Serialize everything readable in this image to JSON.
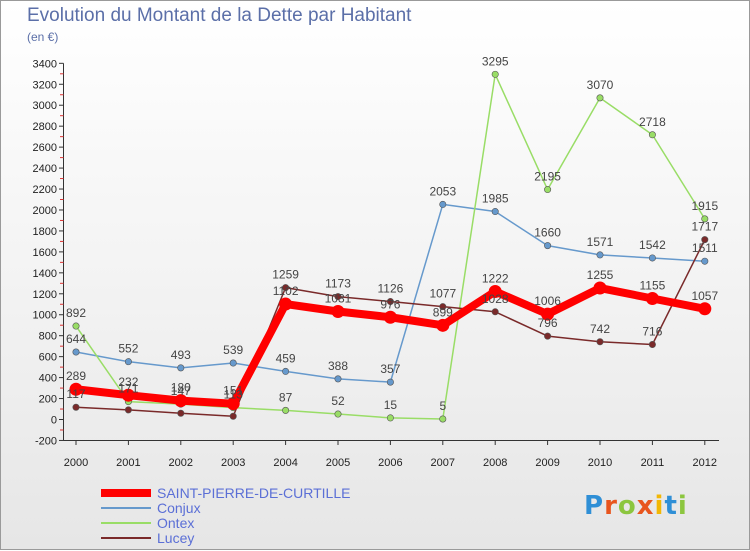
{
  "header": {
    "title": "Evolution du Montant de la Dette par Habitant",
    "unit": "(en €)"
  },
  "logo": {
    "text": "Proxiti",
    "letter_colors": [
      "#2f8fd6",
      "#e8551e",
      "#8cc63f",
      "#e8551e",
      "#f2b705",
      "#2f8fd6",
      "#8cc63f"
    ]
  },
  "chart_data": {
    "type": "line",
    "title": "Evolution du Montant de la Dette par Habitant",
    "subtitle": "(en €)",
    "xlabel": "",
    "ylabel": "",
    "x": [
      "2000",
      "2001",
      "2002",
      "2003",
      "2004",
      "2005",
      "2006",
      "2007",
      "2008",
      "2009",
      "2010",
      "2011",
      "2012"
    ],
    "ylim": [
      -200,
      3400
    ],
    "yticks": [
      -200,
      0,
      200,
      400,
      600,
      800,
      1000,
      1200,
      1400,
      1600,
      1800,
      2000,
      2200,
      2400,
      2600,
      2800,
      3000,
      3200,
      3400
    ],
    "grid": false,
    "legend_position": "bottom-left",
    "series": [
      {
        "name": "SAINT-PIERRE-DE-CURTILLE",
        "color": "#ff0000",
        "label_color": "#5b6fd6",
        "emphasis": true,
        "values": [
          289,
          232,
          180,
          151,
          1102,
          1031,
          976,
          899,
          1222,
          1006,
          1255,
          1155,
          1057
        ],
        "labels": [
          "289",
          "232",
          "180",
          "151",
          "1102",
          "1031",
          "976",
          "899",
          "1222",
          "1006",
          "1255",
          "1155",
          "1057"
        ]
      },
      {
        "name": "Conjux",
        "color": "#6699cc",
        "label_color": "#5b6fd6",
        "emphasis": false,
        "values": [
          644,
          552,
          493,
          539,
          459,
          388,
          357,
          2053,
          1985,
          1660,
          1571,
          1542,
          1511
        ],
        "labels": [
          "644",
          "552",
          "493",
          "539",
          "459",
          "388",
          "357",
          "2053",
          "1985",
          "1660",
          "1571",
          "1542",
          "1511"
        ]
      },
      {
        "name": "Ontex",
        "color": "#99dd66",
        "label_color": "#5b6fd6",
        "emphasis": false,
        "values": [
          892,
          171,
          147,
          113,
          87,
          52,
          15,
          5,
          3295,
          2195,
          3070,
          2718,
          1915
        ],
        "labels": [
          "892",
          "171",
          "147",
          "113",
          "87",
          "52",
          "15",
          "5",
          "3295",
          "2195",
          "3070",
          "2718",
          "1915"
        ]
      },
      {
        "name": "Lucey",
        "color": "#7a2a2a",
        "label_color": "#5b6fd6",
        "emphasis": false,
        "values": [
          117,
          92,
          60,
          31,
          1259,
          1173,
          1126,
          1077,
          1028,
          796,
          742,
          716,
          1717
        ],
        "labels": [
          "117",
          "",
          "",
          "",
          "1259",
          "1173",
          "1126",
          "1077",
          "1028",
          "796",
          "742",
          "716",
          "1717"
        ]
      }
    ]
  }
}
